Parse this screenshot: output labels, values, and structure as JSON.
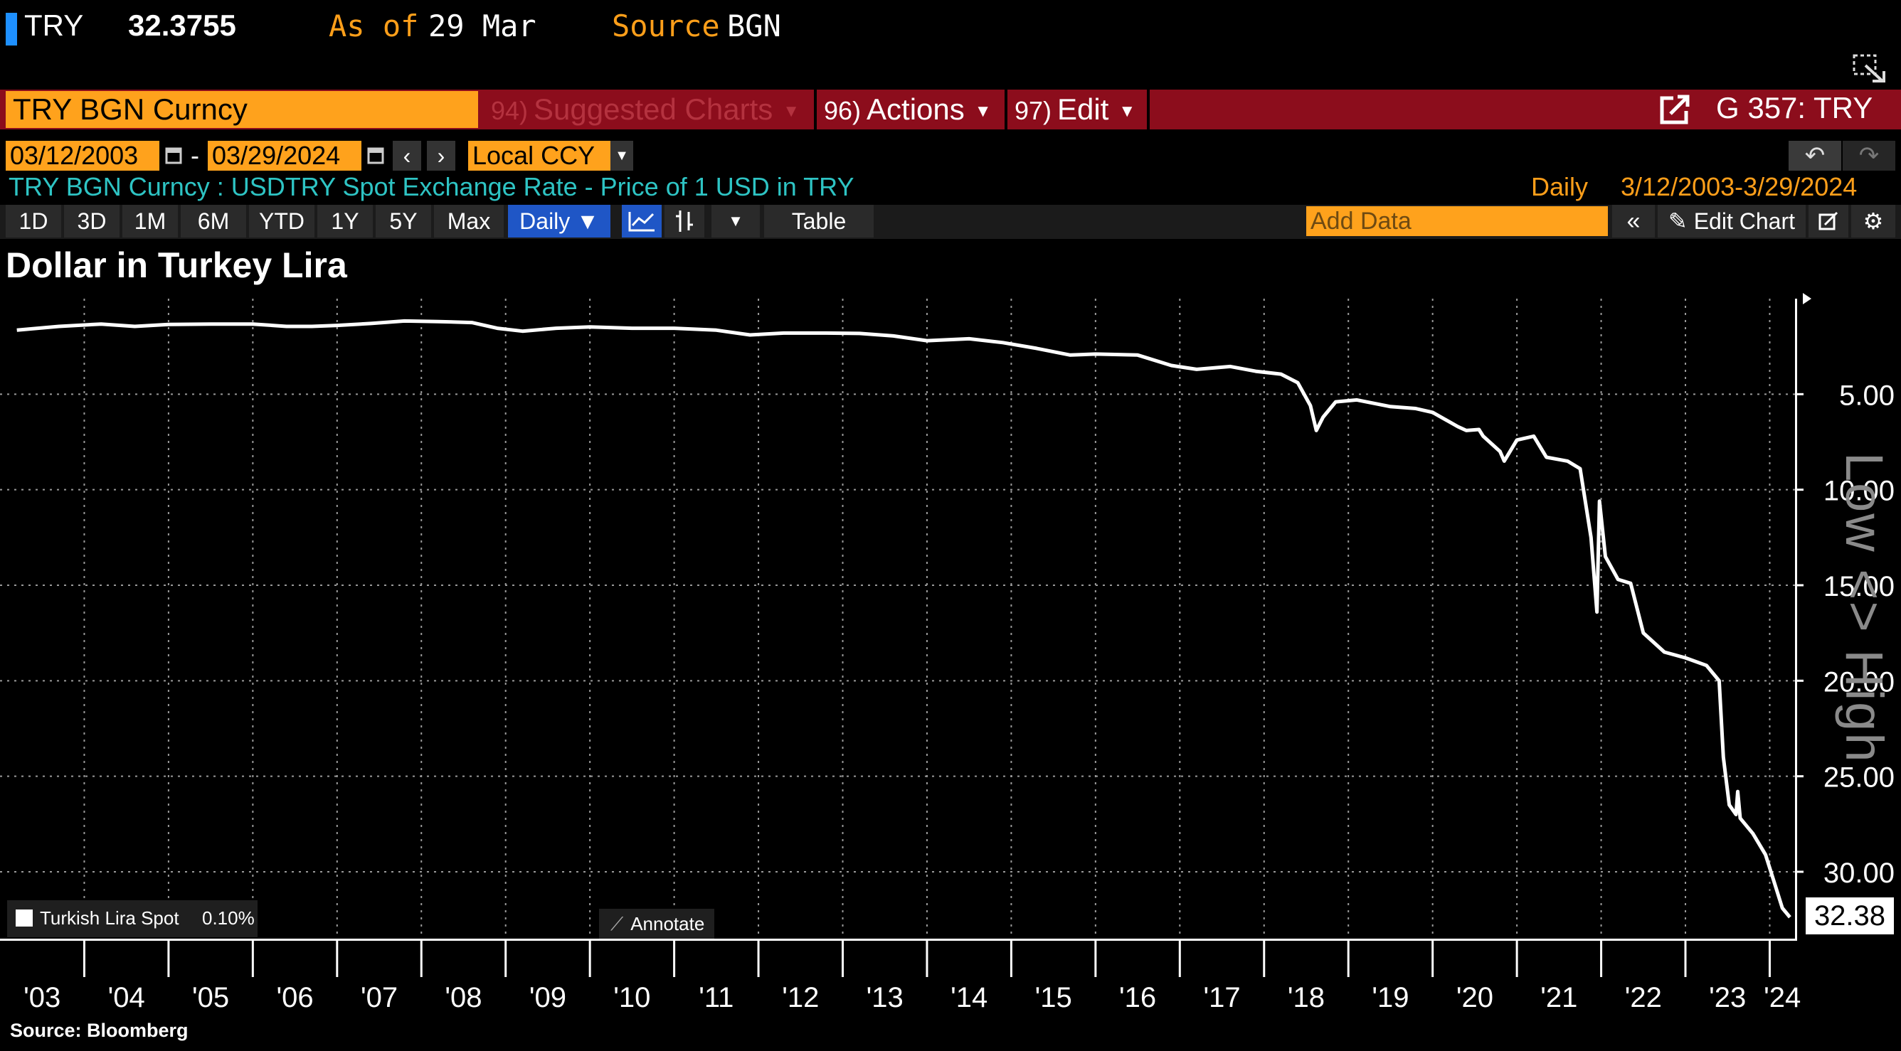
{
  "header": {
    "ticker": "TRY",
    "last_price": "32.3755",
    "asof_label": "As of",
    "asof_value": "29 Mar",
    "source_label": "Source",
    "source_value": "BGN"
  },
  "command_bar": {
    "security": "TRY BGN Curncy",
    "suggested_num": "94)",
    "suggested_label": "Suggested Charts",
    "actions_num": "96)",
    "actions_label": "Actions",
    "edit_num": "97)",
    "edit_label": "Edit",
    "function_code": "G 357: TRY"
  },
  "date_row": {
    "start_date": "03/12/2003",
    "end_date": "03/29/2024",
    "dash": "-",
    "currency": "Local CCY"
  },
  "description": {
    "text": "TRY BGN Curncy : USDTRY Spot Exchange Rate - Price of 1 USD in TRY",
    "frequency": "Daily",
    "range": "3/12/2003-3/29/2024"
  },
  "toolbar": {
    "periods": [
      "1D",
      "3D",
      "1M",
      "6M",
      "YTD",
      "1Y",
      "5Y",
      "Max"
    ],
    "frequency": "Daily ▼",
    "table": "Table",
    "add_data_placeholder": "Add Data",
    "edit_chart": "Edit Chart"
  },
  "legend": {
    "name": "Turkish Lira Spot",
    "change": "0.10%"
  },
  "annotate_label": "Annotate",
  "low_high_label": "Low <> High",
  "source_note": "Source: Bloomberg",
  "colors": {
    "accent_orange": "#ffa21c",
    "command_bar_red": "#8c0d1c",
    "description_cyan": "#2ec4c4",
    "selected_blue": "#1f56c6",
    "series_line": "#ffffff"
  },
  "chart_data": {
    "type": "line",
    "title": "Dollar in Turkey Lira",
    "y_axis_inverted": true,
    "y_axis_side": "right",
    "ylim": [
      0,
      33.5
    ],
    "y_ticks": [
      5,
      10,
      15,
      20,
      25,
      30
    ],
    "y_tick_labels": [
      "5.00",
      "10.00",
      "15.00",
      "20.00",
      "25.00",
      "30.00"
    ],
    "x_tick_labels": [
      "'03",
      "'04",
      "'05",
      "'06",
      "'07",
      "'08",
      "'09",
      "'10",
      "'11",
      "'12",
      "'13",
      "'14",
      "'15",
      "'16",
      "'17",
      "'18",
      "'19",
      "'20",
      "'21",
      "'22",
      "'23",
      "'24"
    ],
    "grid": true,
    "last_value_label": "32.38",
    "series": [
      {
        "name": "Turkish Lira Spot",
        "points": [
          [
            2003.2,
            1.65
          ],
          [
            2003.7,
            1.45
          ],
          [
            2004.2,
            1.33
          ],
          [
            2004.6,
            1.45
          ],
          [
            2005.0,
            1.35
          ],
          [
            2005.5,
            1.33
          ],
          [
            2006.0,
            1.33
          ],
          [
            2006.4,
            1.45
          ],
          [
            2006.7,
            1.45
          ],
          [
            2007.0,
            1.4
          ],
          [
            2007.4,
            1.3
          ],
          [
            2007.8,
            1.17
          ],
          [
            2008.2,
            1.2
          ],
          [
            2008.6,
            1.25
          ],
          [
            2008.9,
            1.55
          ],
          [
            2009.2,
            1.7
          ],
          [
            2009.6,
            1.55
          ],
          [
            2010.0,
            1.48
          ],
          [
            2010.5,
            1.55
          ],
          [
            2011.0,
            1.55
          ],
          [
            2011.5,
            1.65
          ],
          [
            2011.9,
            1.9
          ],
          [
            2012.3,
            1.8
          ],
          [
            2012.8,
            1.8
          ],
          [
            2013.2,
            1.82
          ],
          [
            2013.6,
            1.95
          ],
          [
            2014.0,
            2.2
          ],
          [
            2014.5,
            2.1
          ],
          [
            2014.9,
            2.3
          ],
          [
            2015.3,
            2.6
          ],
          [
            2015.7,
            2.95
          ],
          [
            2016.0,
            2.9
          ],
          [
            2016.5,
            2.95
          ],
          [
            2016.9,
            3.5
          ],
          [
            2017.2,
            3.7
          ],
          [
            2017.6,
            3.55
          ],
          [
            2017.9,
            3.8
          ],
          [
            2018.2,
            3.95
          ],
          [
            2018.4,
            4.4
          ],
          [
            2018.55,
            5.6
          ],
          [
            2018.62,
            6.9
          ],
          [
            2018.7,
            6.2
          ],
          [
            2018.85,
            5.4
          ],
          [
            2019.1,
            5.3
          ],
          [
            2019.5,
            5.65
          ],
          [
            2019.8,
            5.75
          ],
          [
            2020.0,
            5.95
          ],
          [
            2020.3,
            6.7
          ],
          [
            2020.4,
            6.9
          ],
          [
            2020.55,
            6.85
          ],
          [
            2020.6,
            7.2
          ],
          [
            2020.8,
            8.0
          ],
          [
            2020.85,
            8.5
          ],
          [
            2021.0,
            7.4
          ],
          [
            2021.2,
            7.2
          ],
          [
            2021.35,
            8.3
          ],
          [
            2021.6,
            8.5
          ],
          [
            2021.75,
            8.9
          ],
          [
            2021.88,
            12.5
          ],
          [
            2021.95,
            16.4
          ],
          [
            2021.98,
            10.6
          ],
          [
            2022.05,
            13.5
          ],
          [
            2022.2,
            14.7
          ],
          [
            2022.35,
            14.9
          ],
          [
            2022.5,
            17.5
          ],
          [
            2022.75,
            18.5
          ],
          [
            2023.0,
            18.8
          ],
          [
            2023.25,
            19.2
          ],
          [
            2023.4,
            20.0
          ],
          [
            2023.45,
            24.0
          ],
          [
            2023.52,
            26.5
          ],
          [
            2023.6,
            27.0
          ],
          [
            2023.62,
            25.8
          ],
          [
            2023.65,
            27.2
          ],
          [
            2023.8,
            28.0
          ],
          [
            2023.95,
            29.1
          ],
          [
            2024.05,
            30.5
          ],
          [
            2024.15,
            31.9
          ],
          [
            2024.24,
            32.38
          ]
        ]
      }
    ]
  }
}
